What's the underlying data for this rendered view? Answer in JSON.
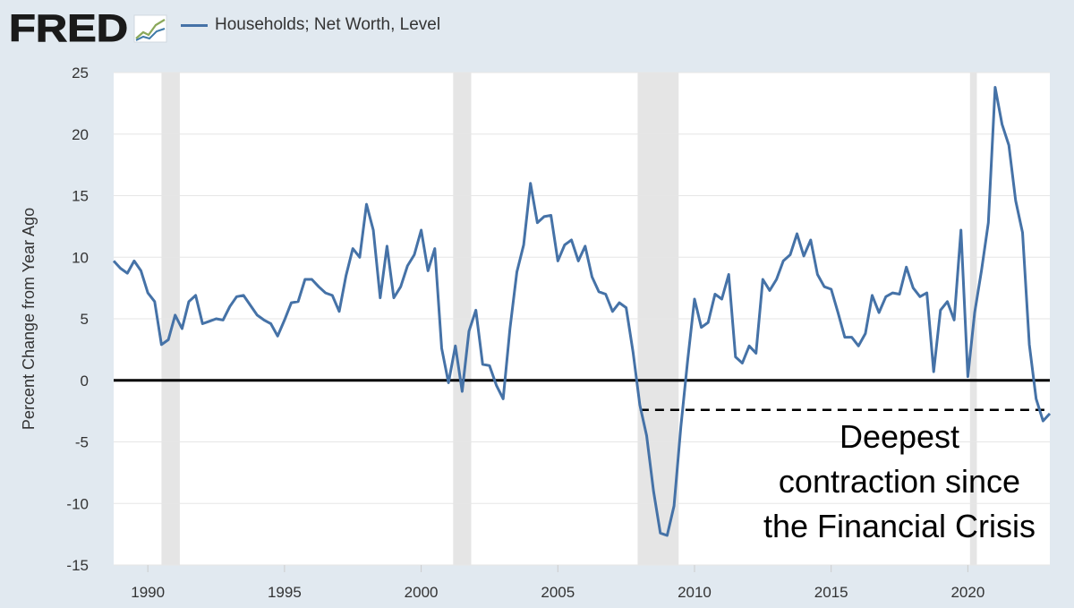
{
  "header": {
    "logo_text": "FRED",
    "logo_icon": "line-graph-icon"
  },
  "colors": {
    "background": "#e1e9f0",
    "plot_background": "#ffffff",
    "series": "#4572a7",
    "recession": "#e5e5e5",
    "gridline": "#e6e6e6",
    "zero_line": "#000000",
    "axis_text": "#333333"
  },
  "chart_data": {
    "type": "line",
    "title": "",
    "legend": [
      "Households; Net Worth, Level"
    ],
    "ylabel": "Percent Change from Year Ago",
    "xlabel": "",
    "xlim": [
      1988.75,
      2023.0
    ],
    "ylim": [
      -15,
      25
    ],
    "yticks": [
      25,
      20,
      15,
      10,
      5,
      0,
      -5,
      -10,
      -15
    ],
    "xticks": [
      1990,
      1995,
      2000,
      2005,
      2010,
      2015,
      2020
    ],
    "grid": true,
    "recessions": [
      [
        1990.5,
        1991.17
      ],
      [
        2001.17,
        2001.83
      ],
      [
        2007.92,
        2009.42
      ],
      [
        2020.08,
        2020.33
      ]
    ],
    "reference_lines": [
      {
        "y": 0,
        "style": "solid"
      },
      {
        "y": -2.4,
        "x_start": 2008.0,
        "x_end": 2022.8,
        "style": "dashed"
      }
    ],
    "annotation": {
      "lines": [
        "Deepest",
        "contraction since",
        "the Financial Crisis"
      ]
    },
    "series": [
      {
        "name": "Households; Net Worth, Level",
        "x": [
          1988.75,
          1989.0,
          1989.25,
          1989.5,
          1989.75,
          1990.0,
          1990.25,
          1990.5,
          1990.75,
          1991.0,
          1991.25,
          1991.5,
          1991.75,
          1992.0,
          1992.25,
          1992.5,
          1992.75,
          1993.0,
          1993.25,
          1993.5,
          1993.75,
          1994.0,
          1994.25,
          1994.5,
          1994.75,
          1995.0,
          1995.25,
          1995.5,
          1995.75,
          1996.0,
          1996.25,
          1996.5,
          1996.75,
          1997.0,
          1997.25,
          1997.5,
          1997.75,
          1998.0,
          1998.25,
          1998.5,
          1998.75,
          1999.0,
          1999.25,
          1999.5,
          1999.75,
          2000.0,
          2000.25,
          2000.5,
          2000.75,
          2001.0,
          2001.25,
          2001.5,
          2001.75,
          2002.0,
          2002.25,
          2002.5,
          2002.75,
          2003.0,
          2003.25,
          2003.5,
          2003.75,
          2004.0,
          2004.25,
          2004.5,
          2004.75,
          2005.0,
          2005.25,
          2005.5,
          2005.75,
          2006.0,
          2006.25,
          2006.5,
          2006.75,
          2007.0,
          2007.25,
          2007.5,
          2007.75,
          2008.0,
          2008.25,
          2008.5,
          2008.75,
          2009.0,
          2009.25,
          2009.5,
          2009.75,
          2010.0,
          2010.25,
          2010.5,
          2010.75,
          2011.0,
          2011.25,
          2011.5,
          2011.75,
          2012.0,
          2012.25,
          2012.5,
          2012.75,
          2013.0,
          2013.25,
          2013.5,
          2013.75,
          2014.0,
          2014.25,
          2014.5,
          2014.75,
          2015.0,
          2015.25,
          2015.5,
          2015.75,
          2016.0,
          2016.25,
          2016.5,
          2016.75,
          2017.0,
          2017.25,
          2017.5,
          2017.75,
          2018.0,
          2018.25,
          2018.5,
          2018.75,
          2019.0,
          2019.25,
          2019.5,
          2019.75,
          2020.0,
          2020.25,
          2020.5,
          2020.75,
          2021.0,
          2021.25,
          2021.5,
          2021.75,
          2022.0,
          2022.25,
          2022.5,
          2022.75,
          2023.0
        ],
        "values": [
          9.7,
          9.1,
          8.7,
          9.7,
          8.9,
          7.1,
          6.4,
          2.9,
          3.3,
          5.3,
          4.2,
          6.4,
          6.9,
          4.6,
          4.8,
          5.0,
          4.9,
          6.0,
          6.8,
          6.9,
          6.1,
          5.3,
          4.9,
          4.6,
          3.6,
          4.9,
          6.3,
          6.4,
          8.2,
          8.2,
          7.6,
          7.1,
          6.9,
          5.6,
          8.5,
          10.7,
          10.0,
          14.3,
          12.2,
          6.7,
          10.9,
          6.7,
          7.6,
          9.3,
          10.2,
          12.2,
          8.9,
          10.7,
          2.6,
          -0.2,
          2.8,
          -0.9,
          4.0,
          5.7,
          1.3,
          1.2,
          -0.4,
          -1.5,
          4.2,
          8.8,
          11.0,
          16.0,
          12.8,
          13.3,
          13.4,
          9.7,
          11.0,
          11.4,
          9.7,
          10.9,
          8.4,
          7.2,
          7.0,
          5.6,
          6.3,
          5.9,
          2.3,
          -2.0,
          -4.5,
          -9.0,
          -12.4,
          -12.6,
          -10.2,
          -3.8,
          1.6,
          6.6,
          4.3,
          4.7,
          7.0,
          6.6,
          8.6,
          1.9,
          1.4,
          2.8,
          2.2,
          8.2,
          7.3,
          8.2,
          9.7,
          10.2,
          11.9,
          10.1,
          11.4,
          8.6,
          7.6,
          7.4,
          5.5,
          3.5,
          3.5,
          2.8,
          3.8,
          6.9,
          5.5,
          6.8,
          7.1,
          7.0,
          9.2,
          7.5,
          6.8,
          7.1,
          0.7,
          5.7,
          6.4,
          4.9,
          12.2,
          0.3,
          5.5,
          8.9,
          12.8,
          23.8,
          20.8,
          19.1,
          14.6,
          12.0,
          2.9,
          -1.5,
          -3.3,
          -2.7
        ]
      }
    ]
  }
}
